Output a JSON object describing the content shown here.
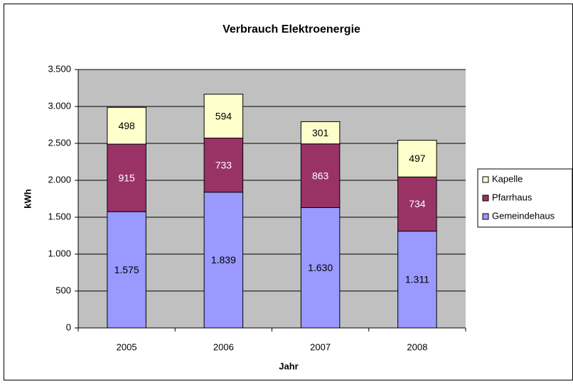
{
  "chart_data": {
    "type": "stacked_bar",
    "title": "Verbrauch Elektroenergie",
    "x_label": "Jahr",
    "y_label": "kWh",
    "categories": [
      "2005",
      "2006",
      "2007",
      "2008"
    ],
    "series": [
      {
        "name": "Gemeindehaus",
        "color": "#9999ff",
        "values": [
          1575,
          1839,
          1630,
          1311
        ],
        "value_labels": [
          "1.575",
          "1.839",
          "1.630",
          "1.311"
        ]
      },
      {
        "name": "Pfarrhaus",
        "color": "#993366",
        "values": [
          915,
          733,
          863,
          734
        ]
      },
      {
        "name": "Kapelle",
        "color": "#ffffcc",
        "values": [
          498,
          594,
          301,
          497
        ]
      }
    ],
    "ylim": [
      0,
      3500
    ],
    "yticks": [
      0,
      500,
      {
        "value": 1000,
        "label": "1.000"
      },
      {
        "value": 1500,
        "label": "1.500"
      },
      {
        "value": 2000,
        "label": "2.000"
      },
      {
        "value": 2500,
        "label": "2.500"
      },
      {
        "value": 3000,
        "label": "3.000"
      },
      {
        "value": 3500,
        "label": "3.500"
      }
    ],
    "grid": true,
    "legend": "right"
  }
}
